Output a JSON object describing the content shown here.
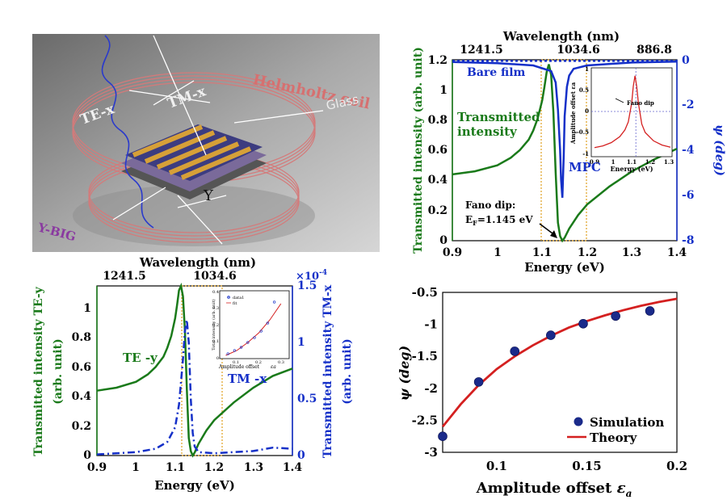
{
  "scene": {
    "labels": {
      "helmholtz": "Helmholtz coil",
      "glass": "Glass",
      "te": "TE-x",
      "tm": "TM-x",
      "ybig": "Y-BIG",
      "y": "Y"
    }
  },
  "chart_data": [
    {
      "id": "top-right",
      "type": "line",
      "top_xlabel": "Wavelength (nm)",
      "top_ticks": [
        "1241.5",
        "1034.6",
        "886.8"
      ],
      "xlabel": "Energy (eV)",
      "ylabel": "Transmitted intensity (arb. unit)",
      "y2label": "ψ (deg)",
      "xlim": [
        0.9,
        1.4
      ],
      "ylim": [
        0,
        1.2
      ],
      "y2lim": [
        -8,
        0
      ],
      "xticks": [
        "0.9",
        "1",
        "1.1",
        "1.2",
        "1.3",
        "1.4"
      ],
      "yticks": [
        "0",
        "0.2",
        "0.4",
        "0.6",
        "0.8",
        "1",
        "1.2"
      ],
      "y2ticks": [
        "-8",
        "-6",
        "-4",
        "-2",
        "0"
      ],
      "annotations": {
        "bare_film": "Bare film",
        "transmitted": [
          "Transmitted",
          "intensity"
        ],
        "mpc": "MPC",
        "fano_title": "Fano dip:",
        "fano_sub": "E",
        "fano_sub_idx": "F",
        "fano_value": "=1.145 eV"
      },
      "series": [
        {
          "name": "Transmitted intensity",
          "axis": "left",
          "color": "#1a7a1a",
          "x": [
            0.9,
            0.95,
            1.0,
            1.03,
            1.05,
            1.07,
            1.08,
            1.09,
            1.1,
            1.105,
            1.11,
            1.115,
            1.12,
            1.125,
            1.13,
            1.135,
            1.14,
            1.145,
            1.15,
            1.16,
            1.18,
            1.2,
            1.25,
            1.3,
            1.35,
            1.4
          ],
          "y": [
            0.44,
            0.46,
            0.5,
            0.55,
            0.6,
            0.67,
            0.73,
            0.81,
            0.93,
            1.02,
            1.12,
            1.17,
            1.1,
            0.85,
            0.45,
            0.12,
            0.03,
            0.0,
            0.02,
            0.08,
            0.17,
            0.24,
            0.36,
            0.46,
            0.54,
            0.61
          ]
        },
        {
          "name": "ψ (Bare film)",
          "axis": "right",
          "color": "#1530c8",
          "dash": "3,3",
          "x": [
            0.9,
            1.4
          ],
          "y": [
            -0.05,
            -0.05
          ]
        },
        {
          "name": "ψ (MPC)",
          "axis": "right",
          "color": "#1530c8",
          "x": [
            0.9,
            1.0,
            1.08,
            1.12,
            1.13,
            1.135,
            1.14,
            1.142,
            1.145,
            1.148,
            1.15,
            1.155,
            1.16,
            1.17,
            1.2,
            1.3,
            1.4
          ],
          "y": [
            -0.1,
            -0.15,
            -0.25,
            -0.5,
            -1.0,
            -2.2,
            -4.0,
            -5.3,
            -6.1,
            -4.2,
            -2.5,
            -1.2,
            -0.7,
            -0.4,
            -0.25,
            -0.12,
            -0.08
          ]
        }
      ],
      "inset": {
        "xlabel": "Energy (eV)",
        "ylabel": "Amplitude offset εa",
        "xticks": [
          "0.9",
          "1",
          "1.1",
          "1.2",
          "1.3"
        ],
        "yticks": [
          "-1",
          "-0.5",
          "0",
          "0.5",
          "1"
        ],
        "annotation": "Fano dip",
        "x": [
          0.9,
          0.95,
          1.0,
          1.05,
          1.08,
          1.1,
          1.12,
          1.13,
          1.14,
          1.15,
          1.16,
          1.18,
          1.2,
          1.25,
          1.3,
          1.35
        ],
        "y": [
          -0.86,
          -0.82,
          -0.74,
          -0.6,
          -0.44,
          -0.25,
          0.2,
          0.6,
          0.85,
          0.6,
          0.2,
          -0.3,
          -0.5,
          -0.7,
          -0.8,
          -0.85
        ]
      }
    },
    {
      "id": "bottom-left",
      "type": "line",
      "top_xlabel": "Wavelength (nm)",
      "top_ticks": [
        "1241.5",
        "1034.6"
      ],
      "xlabel": "Energy (eV)",
      "ylabel": [
        "Transmitted intensity TE-y",
        "(arb. unit)"
      ],
      "y2label": [
        "Transmitted intensity TM-x",
        "(arb. unit)"
      ],
      "y2_multiplier": "×10",
      "y2_exponent": "-4",
      "xlim": [
        0.9,
        1.4
      ],
      "ylim": [
        0,
        1.15
      ],
      "y2lim": [
        0,
        1.5
      ],
      "xticks": [
        "0.9",
        "1",
        "1.1",
        "1.2",
        "1.3",
        "1.4"
      ],
      "yticks": [
        "0",
        "0.2",
        "0.4",
        "0.6",
        "0.8",
        "1"
      ],
      "y2ticks": [
        "0",
        "0.5",
        "1",
        "1.5"
      ],
      "annotations": {
        "te": "TE -y",
        "tm": "TM -x"
      },
      "series": [
        {
          "name": "TE -y",
          "axis": "left",
          "color": "#1a7a1a",
          "x": [
            0.9,
            0.95,
            1.0,
            1.03,
            1.05,
            1.07,
            1.08,
            1.09,
            1.1,
            1.105,
            1.11,
            1.115,
            1.12,
            1.125,
            1.13,
            1.135,
            1.14,
            1.145,
            1.15,
            1.16,
            1.18,
            1.2,
            1.25,
            1.3,
            1.35,
            1.4
          ],
          "y": [
            0.44,
            0.46,
            0.5,
            0.55,
            0.6,
            0.67,
            0.73,
            0.81,
            0.93,
            1.02,
            1.12,
            1.15,
            1.08,
            0.85,
            0.45,
            0.12,
            0.03,
            0.0,
            0.02,
            0.08,
            0.17,
            0.24,
            0.36,
            0.46,
            0.54,
            0.59
          ]
        },
        {
          "name": "TM -x",
          "axis": "right",
          "color": "#1530c8",
          "dash": "9,4,2,4",
          "x": [
            0.9,
            1.0,
            1.05,
            1.08,
            1.1,
            1.11,
            1.12,
            1.125,
            1.13,
            1.135,
            1.14,
            1.145,
            1.15,
            1.16,
            1.2,
            1.3,
            1.35,
            1.4
          ],
          "y": [
            0.01,
            0.03,
            0.06,
            0.12,
            0.25,
            0.45,
            0.85,
            1.1,
            1.2,
            1.0,
            0.5,
            0.2,
            0.08,
            0.03,
            0.02,
            0.04,
            0.07,
            0.06
          ]
        }
      ],
      "inset": {
        "xlabel": "Amplitude offset",
        "xlabel_sym": "εa",
        "ylabel": "Total intensity (arb. unit)",
        "legend": [
          "data1",
          "fit"
        ],
        "xticks": [
          "0.1",
          "0.2",
          "0.3"
        ],
        "yticks": [
          "0",
          "0.1",
          "0.2",
          "0.3",
          "0.4"
        ],
        "points": {
          "x": [
            0.06,
            0.09,
            0.12,
            0.15,
            0.18,
            0.21,
            0.24,
            0.27
          ],
          "y": [
            0.02,
            0.04,
            0.06,
            0.09,
            0.12,
            0.16,
            0.21,
            0.34
          ]
        },
        "fit": {
          "x": [
            0.05,
            0.1,
            0.15,
            0.2,
            0.25,
            0.3
          ],
          "y": [
            0.01,
            0.04,
            0.09,
            0.15,
            0.23,
            0.33
          ]
        }
      }
    },
    {
      "id": "bottom-right",
      "type": "scatter",
      "xlabel": "Amplitude offset",
      "xlabel_sym": "ε",
      "xlabel_sub": "a",
      "ylabel": "ψ (deg)",
      "xlim": [
        0.07,
        0.2
      ],
      "ylim": [
        -3,
        -0.5
      ],
      "xticks": [
        "0.1",
        "0.15",
        "0.2"
      ],
      "xtick_values": [
        0.1,
        0.15,
        0.2
      ],
      "yticks": [
        "-3",
        "-2.5",
        "-2",
        "-1.5",
        "-1",
        "-0.5"
      ],
      "ytick_values": [
        -3,
        -2.5,
        -2,
        -1.5,
        -1,
        -0.5
      ],
      "legend": [
        "Simulation",
        "Theory"
      ],
      "series": [
        {
          "name": "Simulation",
          "color": "#1a2a8a",
          "x": [
            0.07,
            0.09,
            0.11,
            0.13,
            0.148,
            0.166,
            0.185
          ],
          "y": [
            -2.75,
            -1.9,
            -1.42,
            -1.17,
            -0.99,
            -0.87,
            -0.79
          ]
        },
        {
          "name": "Theory",
          "color": "#d42020",
          "x": [
            0.07,
            0.08,
            0.09,
            0.1,
            0.11,
            0.12,
            0.13,
            0.14,
            0.15,
            0.16,
            0.17,
            0.18,
            0.19,
            0.2
          ],
          "y": [
            -2.6,
            -2.25,
            -1.95,
            -1.7,
            -1.5,
            -1.33,
            -1.18,
            -1.05,
            -0.95,
            -0.86,
            -0.78,
            -0.71,
            -0.65,
            -0.6
          ]
        }
      ]
    }
  ]
}
